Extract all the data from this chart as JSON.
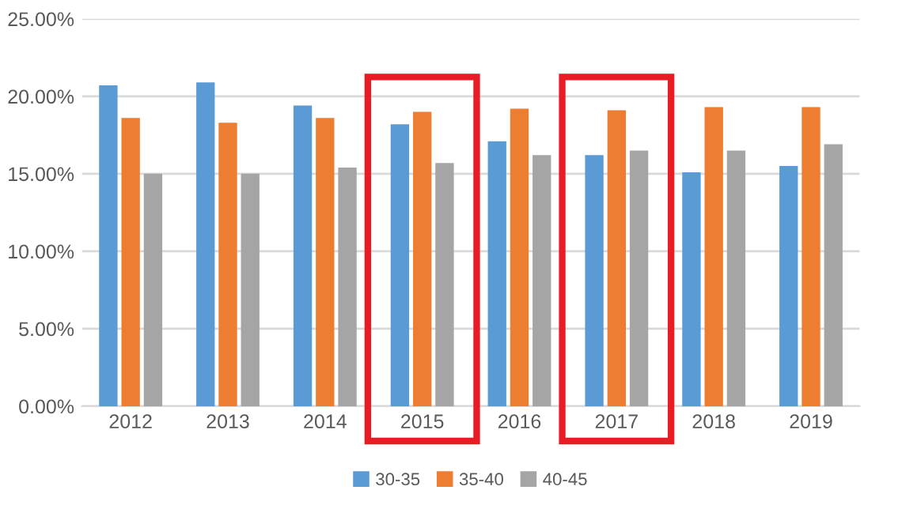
{
  "chart_data": {
    "type": "bar",
    "categories": [
      "2012",
      "2013",
      "2014",
      "2015",
      "2016",
      "2017",
      "2018",
      "2019"
    ],
    "series": [
      {
        "name": "30-35",
        "color": "#5b9bd5",
        "values": [
          20.7,
          20.9,
          19.4,
          18.2,
          17.1,
          16.2,
          15.1,
          15.5
        ]
      },
      {
        "name": "35-40",
        "color": "#ed7d31",
        "values": [
          18.6,
          18.3,
          18.6,
          19.0,
          19.2,
          19.1,
          19.3,
          19.3
        ]
      },
      {
        "name": "40-45",
        "color": "#a5a5a5",
        "values": [
          15.0,
          15.0,
          15.4,
          15.7,
          16.2,
          16.5,
          16.5,
          16.9
        ]
      }
    ],
    "ylim": [
      0,
      25
    ],
    "yticks": [
      {
        "value": 0,
        "label": "0.00%"
      },
      {
        "value": 5,
        "label": "5.00%"
      },
      {
        "value": 10,
        "label": "10.00%"
      },
      {
        "value": 15,
        "label": "15.00%"
      },
      {
        "value": 20,
        "label": "20.00%"
      },
      {
        "value": 25,
        "label": "25.00%"
      }
    ],
    "grid": "y",
    "legend": "bottom"
  }
}
